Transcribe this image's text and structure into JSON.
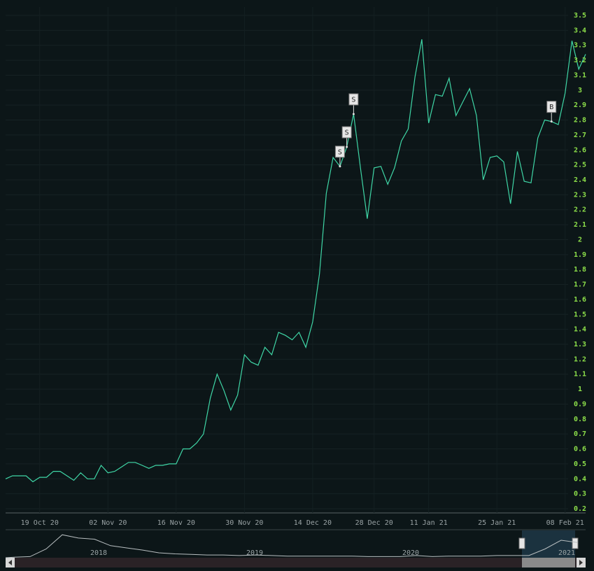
{
  "chart_data": {
    "type": "line",
    "color": "#3fd6a6",
    "grid": true,
    "categories": [
      null,
      null,
      null,
      null,
      null,
      "19 Oct 20",
      null,
      null,
      null,
      null,
      null,
      null,
      null,
      null,
      null,
      "02 Nov 20",
      null,
      null,
      null,
      null,
      null,
      null,
      null,
      null,
      null,
      "16 Nov 20",
      null,
      null,
      null,
      null,
      null,
      null,
      null,
      null,
      null,
      "30 Nov 20",
      null,
      null,
      null,
      null,
      null,
      null,
      null,
      null,
      null,
      "14 Dec 20",
      null,
      null,
      null,
      null,
      null,
      null,
      null,
      null,
      "28 Dec 20",
      null,
      null,
      null,
      null,
      null,
      null,
      null,
      "11 Jan 21",
      null,
      null,
      null,
      null,
      null,
      null,
      null,
      null,
      null,
      "25 Jan 21",
      null,
      null,
      null,
      null,
      null,
      null,
      null,
      null,
      null,
      "08 Feb 21",
      null,
      null,
      null
    ],
    "values": [
      0.4,
      0.42,
      0.42,
      0.42,
      0.38,
      0.41,
      0.41,
      0.45,
      0.45,
      0.42,
      0.39,
      0.44,
      0.4,
      0.4,
      0.49,
      0.44,
      0.45,
      0.48,
      0.51,
      0.51,
      0.49,
      0.47,
      0.49,
      0.49,
      0.5,
      0.5,
      0.6,
      0.6,
      0.64,
      0.7,
      0.94,
      1.1,
      0.99,
      0.86,
      0.96,
      1.23,
      1.18,
      1.16,
      1.28,
      1.23,
      1.38,
      1.36,
      1.33,
      1.38,
      1.28,
      1.45,
      1.77,
      2.31,
      2.55,
      2.49,
      2.62,
      2.84,
      2.48,
      2.14,
      2.48,
      2.49,
      2.37,
      2.48,
      2.66,
      2.74,
      3.09,
      3.34,
      2.78,
      2.97,
      2.96,
      3.08,
      2.83,
      2.92,
      3.01,
      2.83,
      2.4,
      2.55,
      2.56,
      2.52,
      2.24,
      2.59,
      2.39,
      2.38,
      2.68,
      2.8,
      2.79,
      2.77,
      2.98,
      3.33,
      3.14,
      3.24
    ],
    "ylim": [
      0.2,
      3.5
    ],
    "yticks": [
      0.2,
      0.3,
      0.4,
      0.5,
      0.6,
      0.7,
      0.8,
      0.9,
      1,
      1.1,
      1.2,
      1.3,
      1.4,
      1.5,
      1.6,
      1.7,
      1.8,
      1.9,
      2,
      2.1,
      2.2,
      2.3,
      2.4,
      2.5,
      2.6,
      2.7,
      2.8,
      2.9,
      3,
      3.1,
      3.2,
      3.3,
      3.4,
      3.5
    ],
    "annotations": [
      {
        "index": 49,
        "text": "S"
      },
      {
        "index": 50,
        "text": "S"
      },
      {
        "index": 51,
        "text": "S"
      },
      {
        "index": 80,
        "text": "B"
      }
    ],
    "navigator": {
      "labels": [
        "2018",
        "2019",
        "2020",
        "2021"
      ],
      "values": [
        0.1,
        0.2,
        1.6,
        4.2,
        3.6,
        3.4,
        2.2,
        1.8,
        1.4,
        0.9,
        0.7,
        0.6,
        0.5,
        0.5,
        0.4,
        0.5,
        0.4,
        0.3,
        0.3,
        0.3,
        0.3,
        0.3,
        0.2,
        0.2,
        0.2,
        0.4,
        0.2,
        0.3,
        0.3,
        0.3,
        0.4,
        0.4,
        0.4,
        1.6,
        3.2,
        2.8
      ],
      "ylim": [
        0,
        5
      ]
    }
  }
}
